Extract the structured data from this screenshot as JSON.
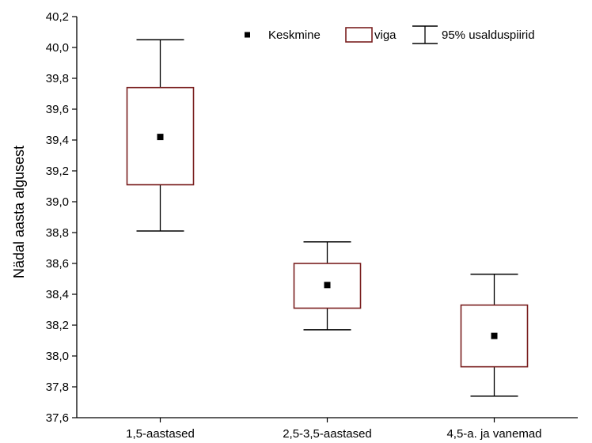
{
  "chart_data": {
    "type": "box",
    "title": "",
    "xlabel": "",
    "ylabel": "Nädal aasta algusest",
    "ylim": [
      37.6,
      40.2
    ],
    "yticks": [
      "37,6",
      "37,8",
      "38,0",
      "38,2",
      "38,4",
      "38,6",
      "38,8",
      "39,0",
      "39,2",
      "39,4",
      "39,6",
      "39,8",
      "40,0",
      "40,2"
    ],
    "ytick_values": [
      37.6,
      37.8,
      38.0,
      38.2,
      38.4,
      38.6,
      38.8,
      39.0,
      39.2,
      39.4,
      39.6,
      39.8,
      40.0,
      40.2
    ],
    "categories": [
      "1,5-aastased",
      "2,5-3,5-aastased",
      "4,5-a. ja vanemad"
    ],
    "groups": [
      {
        "category": "1,5-aastased",
        "mean": 39.42,
        "box_low": 39.11,
        "box_high": 39.74,
        "ci_low": 38.81,
        "ci_high": 40.05
      },
      {
        "category": "2,5-3,5-aastased",
        "mean": 38.46,
        "box_low": 38.31,
        "box_high": 38.6,
        "ci_low": 38.17,
        "ci_high": 38.74
      },
      {
        "category": "4,5-a. ja vanemad",
        "mean": 38.13,
        "box_low": 37.93,
        "box_high": 38.33,
        "ci_low": 37.74,
        "ci_high": 38.53
      }
    ],
    "legend": {
      "placement": "top-right",
      "items": [
        {
          "label": "Keskmine",
          "symbol": "mean-marker"
        },
        {
          "label": "viga",
          "symbol": "box"
        },
        {
          "label": "95% usalduspiirid",
          "symbol": "whisker"
        }
      ]
    },
    "colors": {
      "box": "#7a1f1f",
      "whisker": "#000000",
      "axis": "#000000"
    },
    "grid": false
  }
}
